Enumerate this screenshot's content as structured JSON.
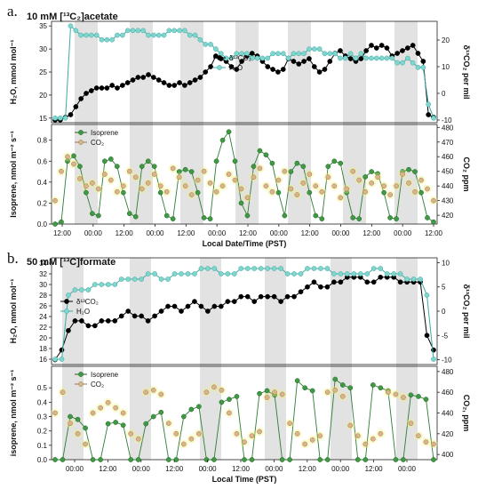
{
  "chart_data": [
    {
      "panel_letter": "a.",
      "title": "10 mM [¹³C₂]acetate",
      "xlabel": "Local Date/Time (PST)",
      "x_ticks": [
        "12:00",
        "00:00",
        "12:00",
        "00:00",
        "12:00",
        "00:00",
        "12:00",
        "00:00",
        "12:00",
        "00:00",
        "12:00",
        "00:00",
        "12:00"
      ],
      "upper": {
        "type": "line",
        "ylabel_left": "H₂O, mmol mol⁻¹",
        "ylabel_right": "δ¹³CO₂ per mil",
        "ylim_left": [
          14,
          36
        ],
        "ylim_right": [
          -11,
          27
        ],
        "left_ticks": [
          15,
          20,
          25,
          30,
          35
        ],
        "right_ticks": [
          -10,
          0,
          10,
          20
        ],
        "legend": "top-center",
        "series": [
          {
            "name": "δ¹³CO₂",
            "axis": "right",
            "color": "#000000",
            "values": [
              -10,
              -10,
              -9,
              -8,
              -5,
              -2,
              0,
              1,
              2,
              2,
              2,
              3,
              2,
              3,
              4,
              5,
              6,
              6,
              7,
              6,
              5,
              4,
              3,
              3,
              4,
              3,
              4,
              5,
              6,
              8,
              10,
              14,
              13,
              12,
              10,
              9,
              12,
              14,
              15,
              14,
              12,
              10,
              9,
              8,
              9,
              13,
              12,
              11,
              12,
              13,
              10,
              8,
              9,
              12,
              15,
              16,
              14,
              13,
              12,
              13,
              16,
              18,
              17,
              18,
              17,
              14,
              15,
              16,
              17,
              18,
              15,
              12,
              -8,
              -9
            ]
          },
          {
            "name": "H₂O",
            "axis": "left",
            "color": "#7fd6cf",
            "values": [
              15,
              15,
              15,
              35,
              34,
              33,
              33,
              33,
              33,
              32,
              32,
              32,
              33,
              33,
              34,
              34,
              34,
              34,
              33,
              33,
              33,
              33,
              34,
              34,
              34,
              34,
              33,
              33,
              32,
              31,
              31,
              30,
              29,
              28,
              28,
              29,
              29,
              29,
              28,
              28,
              28,
              28,
              29,
              29,
              29,
              28,
              29,
              29,
              29,
              30,
              30,
              30,
              29,
              29,
              29,
              28,
              28,
              29,
              28,
              29,
              28,
              28,
              28,
              28,
              28,
              28,
              27,
              27,
              28,
              27,
              26,
              26,
              18,
              15
            ]
          }
        ]
      },
      "lower": {
        "type": "scatter",
        "ylabel_left": "Isoprene, nmol m⁻² s⁻¹",
        "ylabel_right": "CO₂ ppm",
        "ylim_left": [
          0,
          0.95
        ],
        "ylim_right": [
          414,
          482
        ],
        "left_ticks": [
          0.0,
          0.2,
          0.4,
          0.6,
          0.8
        ],
        "right_ticks": [
          420,
          430,
          440,
          450,
          460,
          470,
          480
        ],
        "legend": "top-left",
        "series": [
          {
            "name": "Isoprene",
            "axis": "left",
            "color": "#3f9a43",
            "values": [
              0.0,
              0.02,
              0.6,
              0.65,
              0.55,
              0.3,
              0.1,
              0.08,
              0.6,
              0.62,
              0.55,
              0.3,
              0.1,
              0.07,
              0.55,
              0.6,
              0.55,
              0.3,
              0.08,
              0.05,
              0.5,
              0.52,
              0.5,
              0.3,
              0.06,
              0.05,
              0.6,
              0.8,
              0.88,
              0.6,
              0.2,
              0.08,
              0.55,
              0.7,
              0.66,
              0.58,
              0.3,
              0.08,
              0.5,
              0.58,
              0.55,
              0.3,
              0.08,
              0.05,
              0.55,
              0.6,
              0.58,
              0.3,
              0.06,
              0.05,
              0.45,
              0.5,
              0.48,
              0.3,
              0.06,
              0.05,
              0.5,
              0.52,
              0.5,
              0.3,
              0.06,
              0.02
            ]
          },
          {
            "name": "CO₂",
            "axis": "right",
            "color": "#d9b38c",
            "values": [
              430,
              450,
              460,
              455,
              445,
              440,
              442,
              438,
              448,
              444,
              436,
              440,
              450,
              446,
              438,
              442,
              448,
              440,
              436,
              452,
              446,
              440,
              434,
              444,
              450,
              442,
              436,
              440,
              448,
              444,
              438,
              432,
              446,
              452,
              440,
              436,
              444,
              450,
              438,
              434,
              442,
              448,
              440,
              436,
              446,
              440,
              432,
              438,
              450,
              444,
              436,
              442,
              446,
              440,
              434,
              440,
              448,
              442,
              436,
              444,
              438,
              430
            ]
          }
        ]
      }
    },
    {
      "panel_letter": "b.",
      "title": "50 mM [¹³C]formate",
      "xlabel": "Local Time (PST)",
      "x_ticks": [
        "00:00",
        "12:00",
        "00:00",
        "12:00",
        "00:00",
        "12:00",
        "00:00",
        "12:00",
        "00:00",
        "12:00",
        "00:00"
      ],
      "upper": {
        "type": "line",
        "ylabel_left": "H₂O, mmol mol⁻¹",
        "ylabel_right": "δ¹³CO₂ per mil",
        "ylim_left": [
          15,
          35
        ],
        "ylim_right": [
          -11,
          11
        ],
        "left_ticks": [
          16,
          18,
          20,
          22,
          24,
          26,
          28,
          30,
          32,
          34
        ],
        "right_ticks": [
          -10,
          -5,
          0,
          5,
          10
        ],
        "legend": "top-left",
        "series": [
          {
            "name": "δ¹³CO₂",
            "axis": "right",
            "color": "#000000",
            "values": [
              -10,
              -8,
              -4,
              -2,
              -2,
              -3,
              -3,
              -2,
              -2,
              -2,
              -1,
              0,
              -1,
              -1,
              -2,
              -1,
              0,
              1,
              1,
              0,
              1,
              2,
              1,
              0,
              1,
              1,
              2,
              2,
              3,
              3,
              2,
              3,
              3,
              3,
              2,
              3,
              3,
              4,
              5,
              6,
              5,
              5,
              6,
              6,
              7,
              7,
              7,
              6,
              6,
              7,
              7,
              7,
              6,
              6,
              6,
              6,
              -5,
              -8
            ]
          },
          {
            "name": "H₂O",
            "axis": "left",
            "color": "#7fd6cf",
            "values": [
              16,
              16,
              28,
              29,
              29,
              29,
              30,
              30,
              30,
              30,
              31,
              31,
              31,
              31,
              32,
              32,
              31,
              31,
              32,
              32,
              32,
              32,
              33,
              33,
              33,
              32,
              32,
              32,
              33,
              33,
              33,
              33,
              33,
              33,
              33,
              32,
              32,
              32,
              33,
              33,
              33,
              33,
              32,
              32,
              32,
              32,
              32,
              32,
              33,
              33,
              32,
              32,
              32,
              31,
              31,
              31,
              28,
              16
            ]
          }
        ]
      },
      "lower": {
        "type": "scatter",
        "ylabel_left": "isoprene, nmol m⁻² s⁻¹",
        "ylabel_right": "CO₂, ppm",
        "ylim_left": [
          0,
          0.65
        ],
        "ylim_right": [
          395,
          485
        ],
        "left_ticks": [
          0.0,
          0.1,
          0.2,
          0.3,
          0.4,
          0.5
        ],
        "right_ticks": [
          400,
          420,
          440,
          460,
          480
        ],
        "legend": "top-left",
        "series": [
          {
            "name": "Isoprene",
            "axis": "left",
            "color": "#3f9a43",
            "values": [
              0.0,
              0.0,
              0.3,
              0.28,
              0.22,
              0.0,
              0.0,
              0.25,
              0.26,
              0.24,
              0.0,
              0.0,
              0.25,
              0.3,
              0.33,
              0.0,
              0.0,
              0.3,
              0.35,
              0.37,
              0.0,
              0.0,
              0.4,
              0.42,
              0.44,
              0.0,
              0.0,
              0.46,
              0.48,
              0.45,
              0.0,
              0.0,
              0.55,
              0.5,
              0.48,
              0.0,
              0.0,
              0.56,
              0.52,
              0.5,
              0.0,
              0.0,
              0.52,
              0.5,
              0.48,
              0.0,
              0.0,
              0.45,
              0.44,
              0.42,
              0.0
            ]
          },
          {
            "name": "CO₂",
            "axis": "right",
            "color": "#d9b38c",
            "values": [
              440,
              460,
              430,
              420,
              410,
              440,
              445,
              450,
              445,
              440,
              420,
              415,
              460,
              462,
              458,
              430,
              420,
              410,
              415,
              420,
              460,
              465,
              462,
              440,
              420,
              412,
              418,
              422,
              455,
              460,
              458,
              430,
              420,
              410,
              414,
              418,
              460,
              462,
              456,
              428,
              418,
              410,
              415,
              420,
              460,
              458,
              455,
              430,
              418,
              412,
              410
            ]
          }
        ]
      }
    }
  ]
}
